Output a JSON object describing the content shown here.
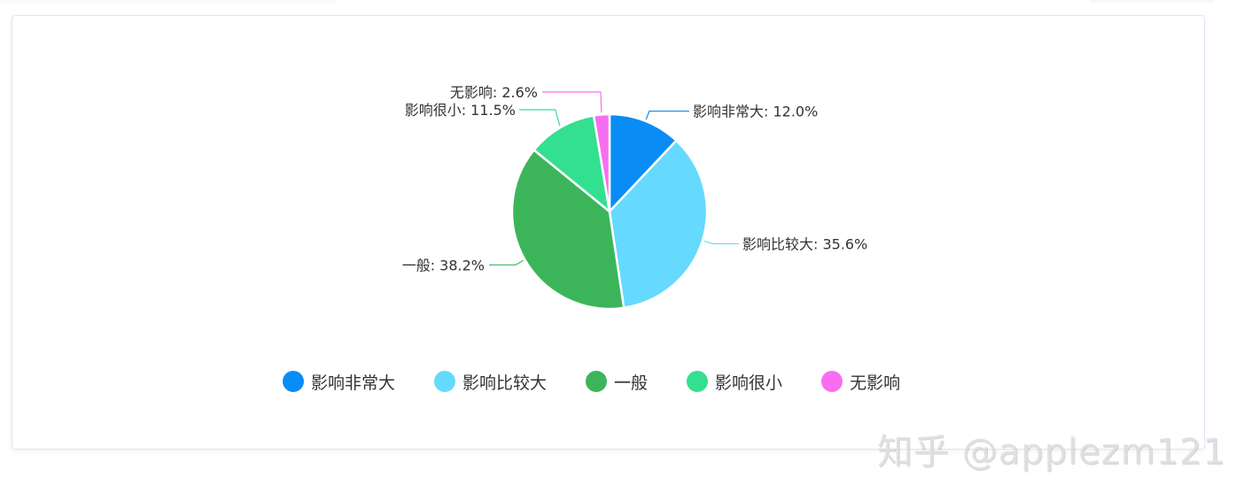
{
  "chart_data": {
    "type": "pie",
    "title": "",
    "series": [
      {
        "name": "影响非常大",
        "value": 12.0,
        "label": "影响非常大: 12.0%",
        "color": "#0a8cf5"
      },
      {
        "name": "影响比较大",
        "value": 35.6,
        "label": "影响比较大: 35.6%",
        "color": "#66d9ff"
      },
      {
        "name": "一般",
        "value": 38.2,
        "label": "一般: 38.2%",
        "color": "#3cb55a"
      },
      {
        "name": "影响很小",
        "value": 11.5,
        "label": "影响很小: 11.5%",
        "color": "#33e090"
      },
      {
        "name": "无影响",
        "value": 2.6,
        "label": "无影响: 2.6%",
        "color": "#f76ff0"
      }
    ],
    "legend_position": "bottom-center"
  },
  "watermark": "知乎 @applezm121"
}
